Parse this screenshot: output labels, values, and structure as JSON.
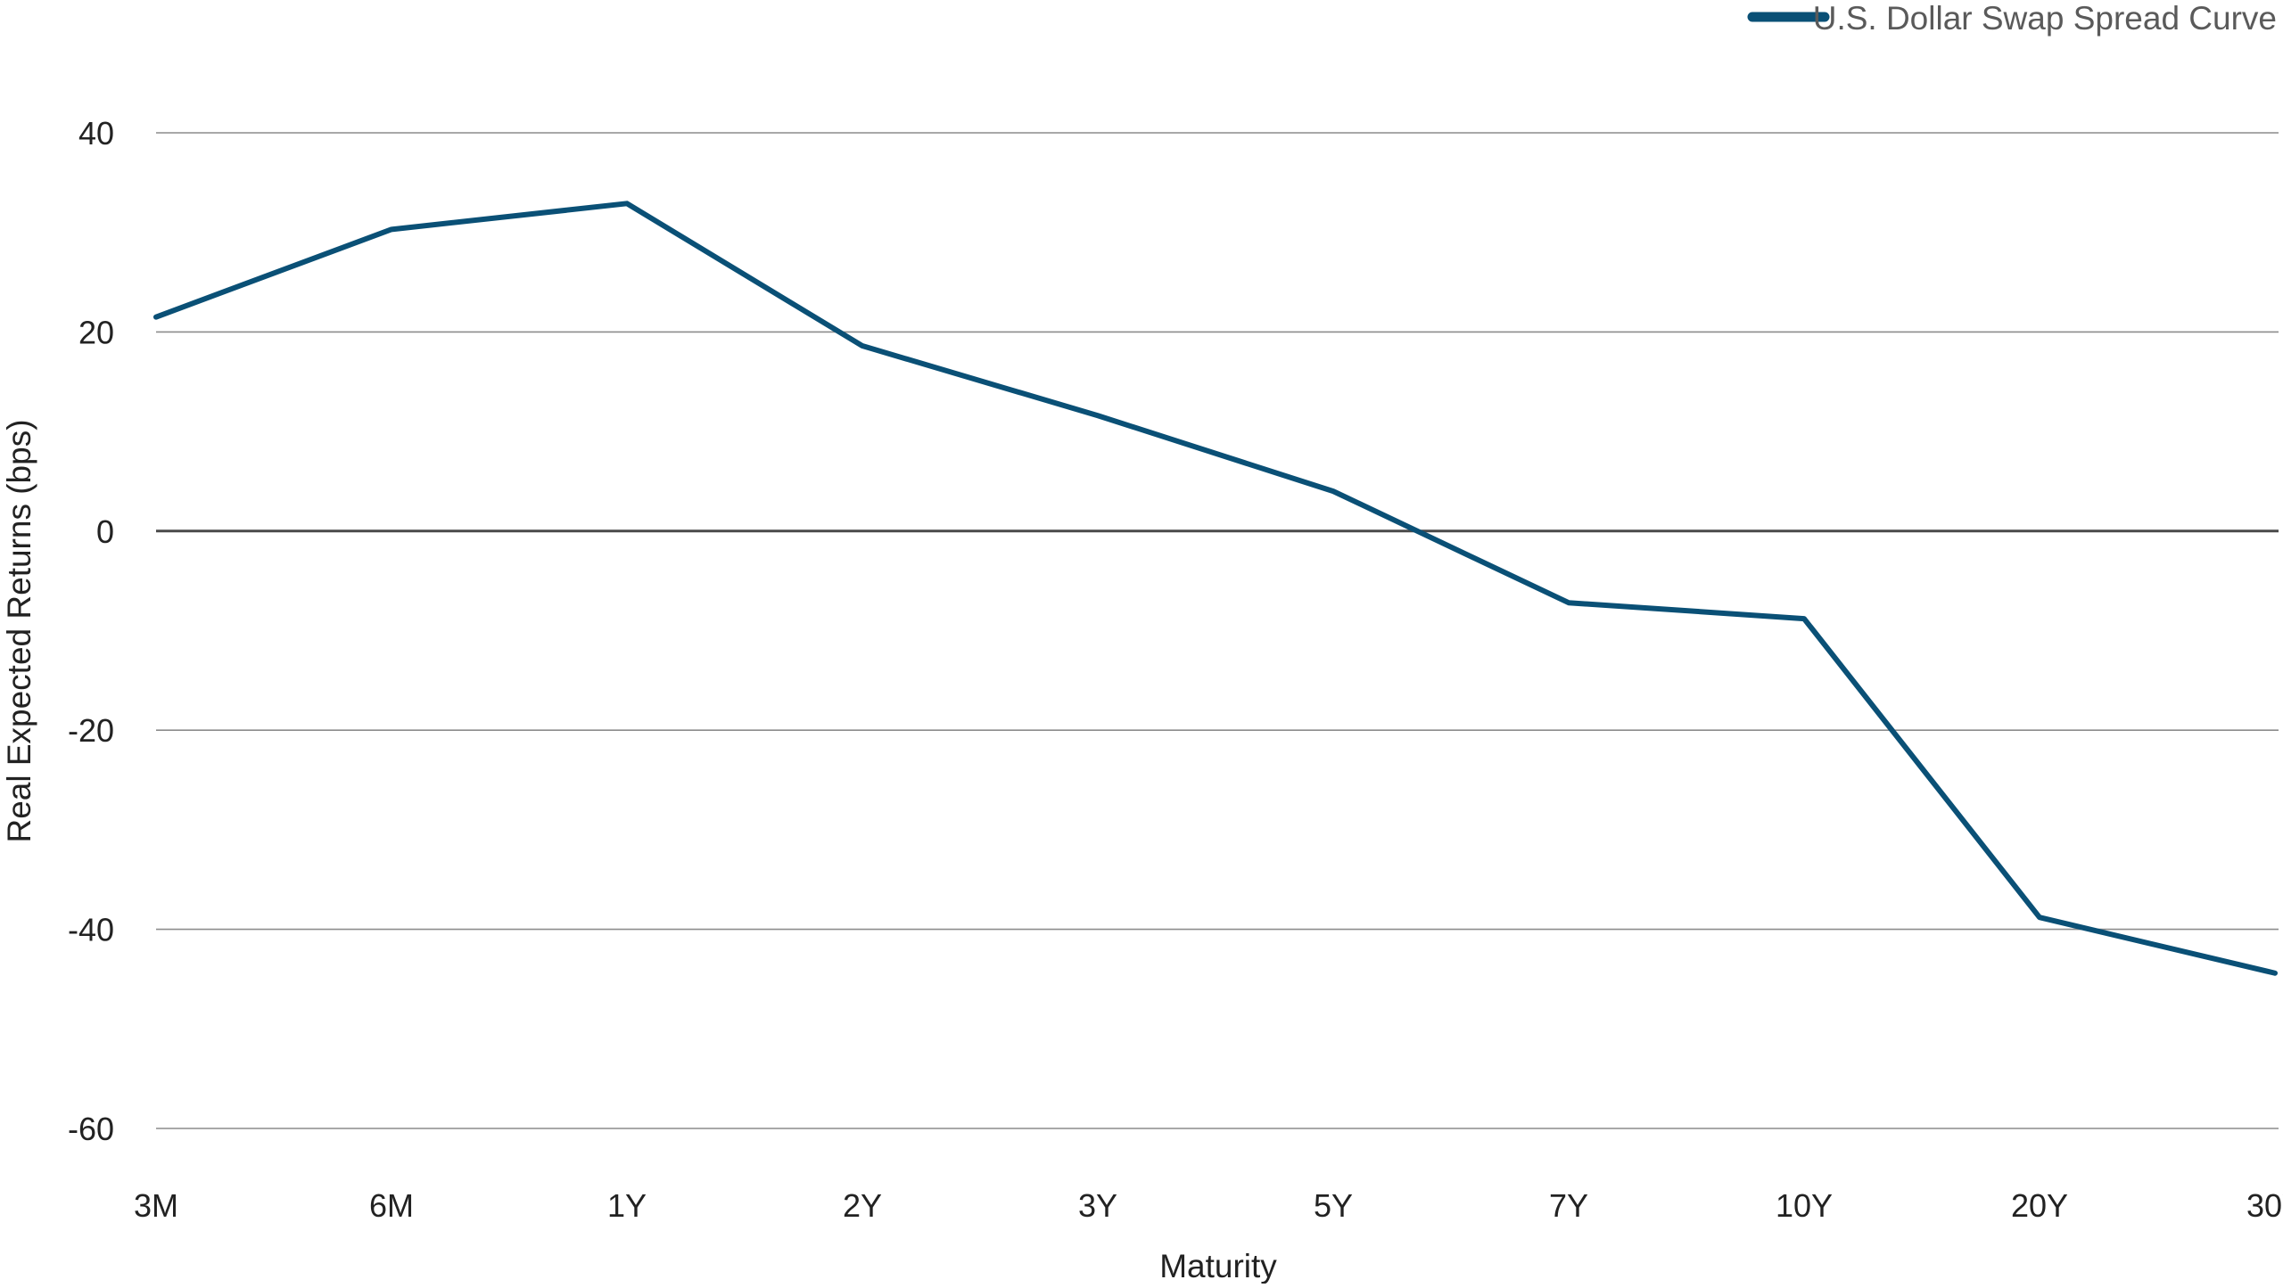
{
  "chart_data": {
    "type": "line",
    "title": "",
    "xlabel": "Maturity",
    "ylabel": "Real Expected Returns (bps)",
    "categories": [
      "3M",
      "6M",
      "1Y",
      "2Y",
      "3Y",
      "5Y",
      "7Y",
      "10Y",
      "20Y",
      "30Y"
    ],
    "series": [
      {
        "name": "U.S. Dollar Swap Spread Curve",
        "values": [
          21.5,
          30.3,
          32.9,
          18.6,
          11.6,
          4.0,
          -7.2,
          -8.8,
          -38.8,
          -44.4
        ]
      }
    ],
    "ylim": [
      -60,
      40
    ],
    "yticks": [
      40,
      20,
      0,
      -20,
      -40,
      -60
    ],
    "grid": true,
    "legend_position": "top-right",
    "colors": {
      "series": "#0a5076",
      "grid": "#8c8c8c",
      "zero_line": "#4a4a4a",
      "text": "#222222"
    }
  }
}
